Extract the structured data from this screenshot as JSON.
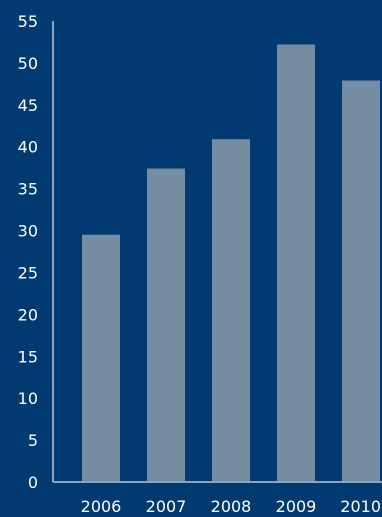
{
  "chart_data": {
    "type": "bar",
    "title": "",
    "xlabel": "",
    "ylabel": "",
    "categories": [
      "2006",
      "2007",
      "2008",
      "2009",
      "2010"
    ],
    "values": [
      29.5,
      37.4,
      40.9,
      52.2,
      47.9
    ],
    "ylim": [
      0,
      55
    ],
    "yticks": [
      0,
      5,
      10,
      15,
      20,
      25,
      30,
      35,
      40,
      45,
      50,
      55
    ],
    "grid": false,
    "legend": "none",
    "colors": {
      "background": "#003a70",
      "bar": "#768ca3",
      "axis": "#8fa3bd",
      "text": "#ffffff"
    }
  }
}
